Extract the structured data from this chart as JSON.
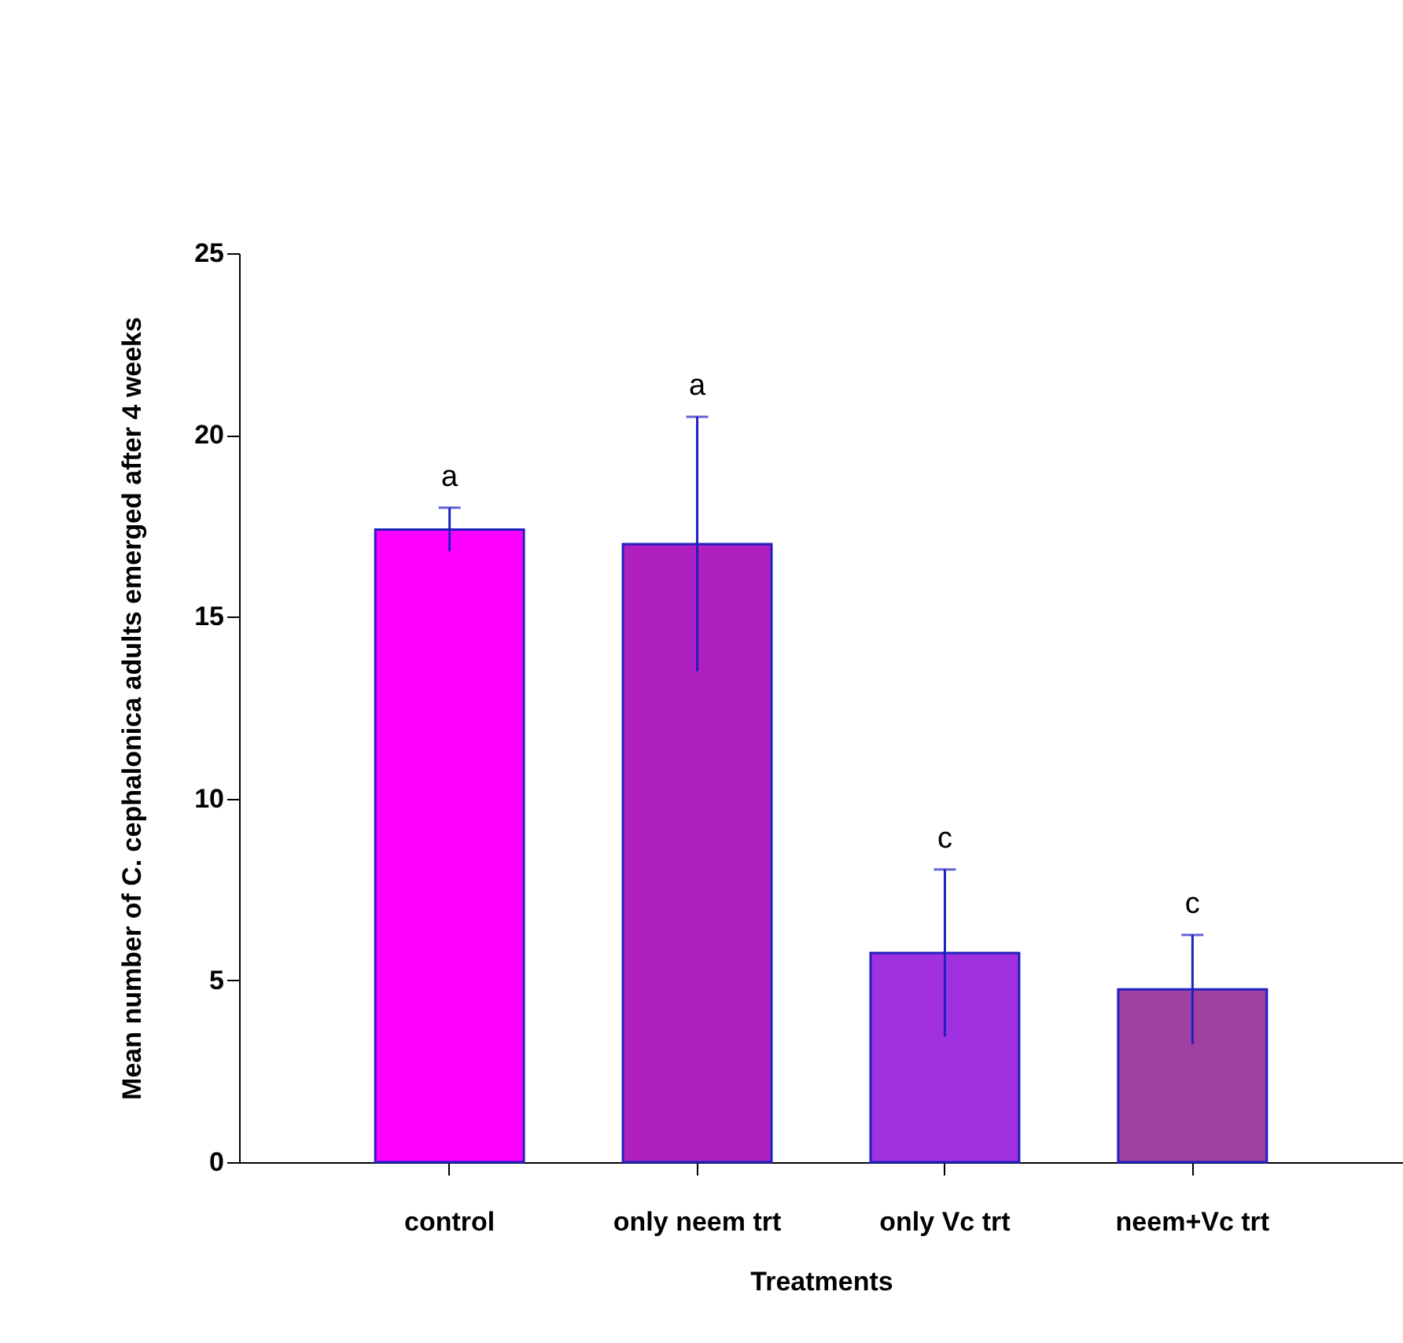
{
  "chart_data": {
    "type": "bar",
    "xlabel": "Treatments",
    "ylabel": "Mean number of C. cephalonica adults emerged after 4 weeks",
    "categories": [
      "control",
      "only neem trt",
      "only Vc trt",
      "neem+Vc trt"
    ],
    "values": [
      17.4,
      17.0,
      5.75,
      4.75
    ],
    "colors": [
      "#ff00ff",
      "#b020c0",
      "#a030e0",
      "#a040a0"
    ],
    "errors": [
      0.6,
      3.5,
      2.3,
      1.5
    ],
    "ylim": [
      0,
      25
    ],
    "yticks": [
      0,
      5,
      10,
      15,
      20,
      25
    ],
    "annotations": [
      "a",
      "a",
      "c",
      "c"
    ]
  }
}
